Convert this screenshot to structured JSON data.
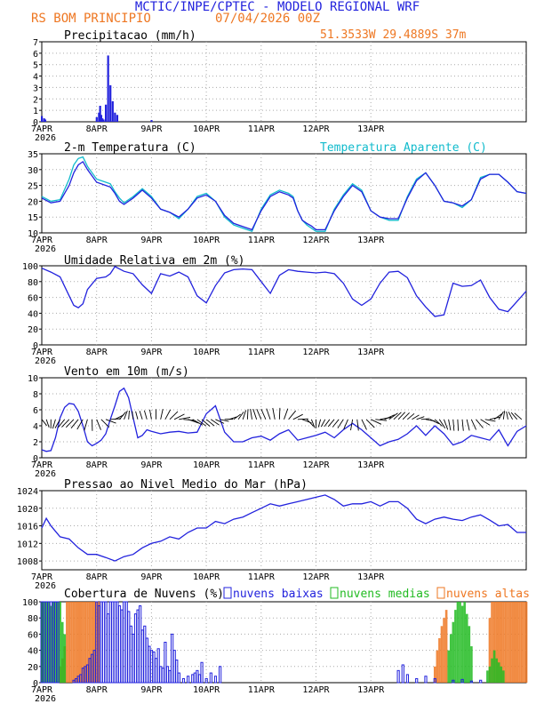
{
  "header": {
    "title": "MCTIC/INPE/CPTEC - MODELO REGIONAL WRF",
    "location": "RS BOM PRINCIPIO",
    "run": "07/04/2026 00Z",
    "coords": "51.3533W 29.4889S 37m"
  },
  "colors": {
    "primary": "#2222dd",
    "orange": "#ee7722",
    "cyan": "#11bbcc",
    "green": "#22bb22",
    "grid": "#aaaaaa"
  },
  "x_axis": {
    "ticks": [
      "7APR",
      "8APR",
      "9APR",
      "10APR",
      "11APR",
      "12APR",
      "13APR"
    ],
    "year": "2026"
  },
  "panels": {
    "precip": {
      "title": "Precipitacao (mm/h)",
      "yticks": [
        "0",
        "1",
        "2",
        "3",
        "4",
        "5",
        "6",
        "7"
      ]
    },
    "temp": {
      "title": "2-m Temperatura (C)",
      "legend_apparent": "Temperatura Aparente (C)",
      "yticks": [
        "10",
        "15",
        "20",
        "25",
        "30",
        "35"
      ]
    },
    "humidity": {
      "title": "Umidade Relativa em 2m (%)",
      "yticks": [
        "0",
        "20",
        "40",
        "60",
        "80",
        "100"
      ]
    },
    "wind": {
      "title": "Vento em 10m (m/s)",
      "yticks": [
        "0",
        "2",
        "4",
        "6",
        "8",
        "10"
      ]
    },
    "pressure": {
      "title": "Pressao ao Nivel Medio do Mar (hPa)",
      "yticks": [
        "1008",
        "1012",
        "1016",
        "1020",
        "1024"
      ]
    },
    "clouds": {
      "title": "Cobertura de Nuvens (%)",
      "legend_low": "nuvens baixas",
      "legend_mid": "nuvens medias",
      "legend_high": "nuvens altas",
      "yticks": [
        "0",
        "20",
        "40",
        "60",
        "80",
        "100"
      ]
    }
  },
  "chart_data": [
    {
      "type": "bar",
      "title": "Precipitacao (mm/h)",
      "ylim": [
        0,
        7
      ],
      "x_hours": [
        0,
        1,
        1.5,
        2,
        3,
        4,
        5,
        6,
        7,
        24,
        25,
        25.5,
        26,
        26.5,
        27,
        28,
        29,
        30,
        31,
        32,
        33,
        34,
        35,
        36,
        48
      ],
      "values": [
        0.5,
        0.3,
        0.2,
        0,
        0,
        0,
        0,
        0,
        0,
        0.4,
        0.8,
        1.4,
        0.6,
        0.3,
        0.2,
        1.5,
        5.8,
        3.2,
        1.8,
        0.8,
        0.6,
        0,
        0,
        0,
        0.15
      ],
      "xlabel": "",
      "ylabel": ""
    },
    {
      "type": "line",
      "title": "2-m Temperatura (C)",
      "ylim": [
        10,
        35
      ],
      "series": [
        {
          "name": "2-m Temperatura (C)",
          "x_hours": [
            0,
            4,
            8,
            12,
            14,
            16,
            18,
            20,
            24,
            28,
            30,
            32,
            34,
            36,
            40,
            44,
            48,
            52,
            56,
            60,
            64,
            68,
            72,
            76,
            80,
            84,
            88,
            92,
            96,
            100,
            104,
            108,
            110,
            112,
            114,
            116,
            118,
            120,
            124,
            128,
            132,
            136,
            140,
            144,
            148,
            152,
            156,
            160,
            164,
            168,
            172,
            176,
            180,
            184,
            188,
            192,
            196,
            200,
            204,
            208,
            212
          ],
          "values": [
            21,
            19.5,
            20,
            25,
            29,
            31.5,
            32.5,
            30,
            26,
            25,
            24.5,
            22.5,
            20,
            19,
            21,
            23.5,
            21,
            17.5,
            16.5,
            15,
            17.5,
            21,
            22,
            20,
            15.5,
            13,
            12,
            11,
            17,
            21.5,
            23,
            22,
            21,
            17,
            14,
            13,
            12.2,
            11,
            11,
            17,
            21.5,
            25,
            23,
            17,
            15,
            14.5,
            14.5,
            21,
            26.5,
            29,
            25,
            20,
            19.5,
            18.5,
            20.5,
            27,
            28.5,
            28.5,
            26,
            23,
            22.5
          ]
        },
        {
          "name": "Temperatura Aparente (C)",
          "x_hours": [
            0,
            4,
            8,
            12,
            14,
            16,
            18,
            20,
            24,
            28,
            30,
            32,
            34,
            36,
            40,
            44,
            48,
            52,
            56,
            60,
            64,
            68,
            72,
            76,
            80,
            84,
            88,
            92,
            96,
            100,
            104,
            108,
            110,
            112,
            114,
            116,
            118,
            120,
            124,
            128,
            132,
            136,
            140,
            144,
            148,
            152,
            156,
            160,
            164,
            168,
            172,
            176,
            180,
            184,
            188,
            192,
            196,
            200,
            204,
            208,
            212
          ],
          "values": [
            21.5,
            20,
            20.5,
            27,
            31.5,
            33.5,
            34,
            31,
            27,
            26,
            25.5,
            23,
            21,
            19.5,
            21.5,
            24,
            21.5,
            17.5,
            16.5,
            14.5,
            17.5,
            21.5,
            22.5,
            20,
            15,
            12.5,
            11.5,
            10.5,
            17.5,
            22,
            23.5,
            22.5,
            21.5,
            17,
            14,
            12.5,
            11.5,
            10.5,
            10.5,
            17.5,
            22,
            25.5,
            23.5,
            17,
            15,
            14,
            14,
            21.5,
            27,
            29,
            25,
            20,
            19.5,
            18,
            20.5,
            27.5,
            28.5,
            28.5,
            26,
            23,
            22.5
          ]
        }
      ],
      "xlabel": "",
      "ylabel": ""
    },
    {
      "type": "line",
      "title": "Umidade Relativa em 2m (%)",
      "ylim": [
        0,
        100
      ],
      "series": [
        {
          "name": "Umidade Relativa em 2m (%)",
          "x_hours": [
            0,
            4,
            8,
            12,
            14,
            16,
            18,
            20,
            24,
            28,
            30,
            32,
            36,
            40,
            44,
            48,
            52,
            56,
            60,
            64,
            68,
            72,
            76,
            80,
            84,
            88,
            92,
            96,
            100,
            104,
            108,
            112,
            116,
            120,
            124,
            128,
            132,
            136,
            140,
            144,
            148,
            152,
            156,
            160,
            164,
            168,
            172,
            176,
            180,
            184,
            188,
            192,
            196,
            200,
            204,
            208,
            212
          ],
          "values": [
            97,
            92,
            86,
            62,
            50,
            47,
            52,
            70,
            84,
            86,
            90,
            99,
            93,
            90,
            76,
            65,
            90,
            87,
            92,
            86,
            62,
            53,
            75,
            91,
            95,
            96,
            95,
            80,
            65,
            88,
            95,
            93,
            92,
            91,
            92,
            90,
            78,
            58,
            50,
            58,
            78,
            92,
            93,
            85,
            62,
            48,
            36,
            38,
            78,
            74,
            75,
            82,
            60,
            45,
            42,
            55,
            68
          ]
        }
      ],
      "xlabel": "",
      "ylabel": ""
    },
    {
      "type": "line",
      "title": "Vento em 10m (m/s)",
      "ylim": [
        0,
        10
      ],
      "series": [
        {
          "name": "Vento em 10m (m/s)",
          "x_hours": [
            0,
            2,
            4,
            6,
            8,
            10,
            12,
            14,
            16,
            18,
            20,
            22,
            24,
            26,
            28,
            30,
            32,
            34,
            36,
            38,
            40,
            42,
            44,
            46,
            48,
            52,
            56,
            60,
            64,
            68,
            72,
            76,
            80,
            84,
            88,
            92,
            96,
            100,
            104,
            108,
            112,
            116,
            120,
            124,
            128,
            132,
            136,
            140,
            144,
            148,
            152,
            156,
            160,
            164,
            168,
            172,
            176,
            180,
            184,
            188,
            192,
            196,
            200,
            204,
            208,
            212
          ],
          "values": [
            1,
            0.8,
            0.9,
            2.5,
            5,
            6.3,
            6.8,
            6.7,
            5.8,
            4,
            2,
            1.5,
            1.8,
            2.2,
            3,
            4.8,
            6.5,
            8.3,
            8.7,
            7.5,
            5,
            2.5,
            2.8,
            3.5,
            3.3,
            3,
            3.2,
            3.3,
            3.1,
            3.2,
            5.5,
            6.5,
            3.2,
            2,
            2,
            2.5,
            2.7,
            2.2,
            3,
            3.5,
            2.2,
            2.5,
            2.8,
            3.2,
            2.5,
            3.5,
            4.3,
            3.5,
            2.5,
            1.5,
            2,
            2.3,
            3,
            4,
            2.8,
            4,
            3,
            1.6,
            2,
            2.8,
            2.5,
            2.2,
            3.5,
            1.5,
            3.3,
            4
          ]
        }
      ],
      "xlabel": "",
      "ylabel": ""
    },
    {
      "type": "line",
      "title": "Pressao ao Nivel Medio do Mar (hPa)",
      "ylim": [
        1006,
        1024
      ],
      "series": [
        {
          "name": "Pressao ao Nivel Medio do Mar (hPa)",
          "x_hours": [
            0,
            2,
            4,
            8,
            12,
            16,
            20,
            24,
            28,
            32,
            36,
            40,
            44,
            48,
            52,
            56,
            60,
            64,
            68,
            72,
            76,
            80,
            84,
            88,
            92,
            96,
            100,
            104,
            108,
            112,
            116,
            120,
            124,
            128,
            132,
            136,
            140,
            144,
            148,
            152,
            156,
            160,
            164,
            168,
            172,
            176,
            180,
            184,
            188,
            192,
            196,
            200,
            204,
            208,
            212
          ],
          "values": [
            1015.5,
            1017.7,
            1016,
            1013.5,
            1013,
            1011,
            1009.5,
            1009.5,
            1008.8,
            1008,
            1009,
            1009.5,
            1011,
            1012,
            1012.5,
            1013.5,
            1013,
            1014.5,
            1015.5,
            1015.5,
            1017,
            1016.5,
            1017.5,
            1018,
            1019,
            1020,
            1021,
            1020.5,
            1021,
            1021.5,
            1022,
            1022.5,
            1023,
            1022,
            1020.5,
            1021,
            1021,
            1021.5,
            1020.5,
            1021.5,
            1021.5,
            1020,
            1017.5,
            1016.5,
            1017.5,
            1018,
            1017.5,
            1017.2,
            1018,
            1018.5,
            1017.3,
            1016,
            1016.3,
            1014.5,
            1014.5
          ]
        }
      ],
      "xlabel": "",
      "ylabel": ""
    },
    {
      "type": "bar",
      "title": "Cobertura de Nuvens (%)",
      "ylim": [
        0,
        100
      ],
      "series": [
        {
          "name": "nuvens baixas",
          "x_hours": [
            0,
            1,
            2,
            3,
            4,
            5,
            6,
            7,
            14,
            15,
            16,
            17,
            18,
            19,
            20,
            21,
            22,
            23,
            24,
            25,
            26,
            27,
            28,
            29,
            30,
            31,
            32,
            33,
            34,
            35,
            36,
            37,
            38,
            39,
            40,
            41,
            42,
            43,
            44,
            45,
            46,
            47,
            48,
            49,
            50,
            51,
            52,
            53,
            54,
            55,
            56,
            57,
            58,
            59,
            60,
            62,
            64,
            66,
            67,
            68,
            69,
            70,
            72,
            74,
            76,
            78,
            156,
            158,
            160,
            164,
            168,
            172,
            180,
            184,
            188,
            192
          ],
          "values": [
            100,
            100,
            100,
            100,
            100,
            100,
            100,
            100,
            3,
            5,
            8,
            10,
            18,
            20,
            22,
            30,
            35,
            40,
            100,
            95,
            100,
            100,
            100,
            85,
            100,
            100,
            100,
            100,
            95,
            90,
            100,
            100,
            88,
            70,
            60,
            85,
            90,
            95,
            65,
            70,
            55,
            45,
            40,
            38,
            30,
            42,
            20,
            18,
            50,
            20,
            15,
            60,
            40,
            28,
            12,
            5,
            8,
            10,
            12,
            15,
            10,
            25,
            5,
            12,
            8,
            20,
            15,
            22,
            10,
            5,
            8,
            5,
            3,
            4,
            2,
            3
          ]
        },
        {
          "name": "nuvens medias",
          "x_hours": [
            0,
            1,
            2,
            3,
            4,
            5,
            6,
            7,
            8,
            9,
            10,
            178,
            179,
            180,
            181,
            182,
            183,
            184,
            185,
            186,
            187,
            188,
            195,
            196,
            197,
            198,
            199,
            200,
            201,
            202
          ],
          "values": [
            100,
            100,
            100,
            100,
            95,
            100,
            100,
            100,
            100,
            75,
            60,
            40,
            60,
            75,
            90,
            100,
            100,
            95,
            100,
            85,
            70,
            45,
            15,
            20,
            30,
            40,
            30,
            25,
            20,
            15
          ]
        },
        {
          "name": "nuvens altas",
          "x_hours": [
            8,
            9,
            10,
            11,
            12,
            13,
            14,
            15,
            16,
            17,
            18,
            19,
            20,
            21,
            22,
            23,
            24,
            25,
            172,
            173,
            174,
            175,
            176,
            177,
            196,
            197,
            198,
            199,
            200,
            201,
            202,
            203,
            204,
            205,
            206,
            207,
            208,
            209,
            210,
            211,
            212
          ],
          "values": [
            20,
            30,
            45,
            100,
            100,
            100,
            100,
            100,
            100,
            100,
            100,
            100,
            100,
            100,
            100,
            100,
            100,
            100,
            20,
            40,
            55,
            70,
            80,
            90,
            80,
            100,
            100,
            100,
            100,
            100,
            100,
            100,
            100,
            100,
            100,
            100,
            100,
            100,
            100,
            100,
            100
          ]
        }
      ],
      "xlabel": "",
      "ylabel": ""
    }
  ]
}
